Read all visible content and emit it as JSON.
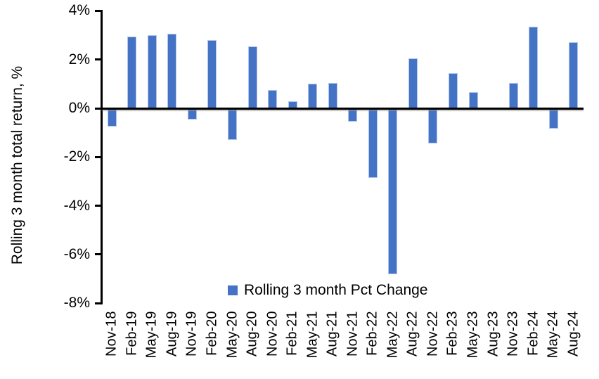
{
  "colors": {
    "bar_fill": "#4472C4",
    "bar_border": "#AEC6EC",
    "axis": "#000000",
    "background": "#FFFFFF"
  },
  "legend": {
    "label": "Rolling 3 month Pct Change"
  },
  "y_axis": {
    "title": "Rolling 3 month total return, %"
  },
  "chart_data": {
    "type": "bar",
    "title": "",
    "xlabel": "",
    "ylabel": "Rolling 3 month total return, %",
    "ylim": [
      -8,
      4
    ],
    "y_ticks": [
      "4%",
      "2%",
      "0%",
      "-2%",
      "-4%",
      "-6%",
      "-8%"
    ],
    "grid": false,
    "legend_entries": [
      "Rolling 3 month Pct Change"
    ],
    "legend_position": "bottom-center-inside",
    "bar_color": "#4472C4",
    "categories": [
      "Nov-18",
      "Feb-19",
      "May-19",
      "Aug-19",
      "Nov-19",
      "Feb-20",
      "May-20",
      "Aug-20",
      "Nov-20",
      "Feb-21",
      "May-21",
      "Aug-21",
      "Nov-21",
      "Feb-22",
      "May-22",
      "Aug-22",
      "Nov-22",
      "Feb-23",
      "May-23",
      "Aug-23",
      "Nov-23",
      "Feb-24",
      "May-24",
      "Aug-24"
    ],
    "values": [
      -0.75,
      2.95,
      3.0,
      3.05,
      -0.45,
      2.8,
      -1.3,
      2.55,
      0.75,
      0.3,
      1.0,
      1.05,
      -0.55,
      -2.85,
      -6.8,
      2.05,
      -1.45,
      1.45,
      0.65,
      0.0,
      1.05,
      3.35,
      -0.85,
      2.7
    ]
  }
}
